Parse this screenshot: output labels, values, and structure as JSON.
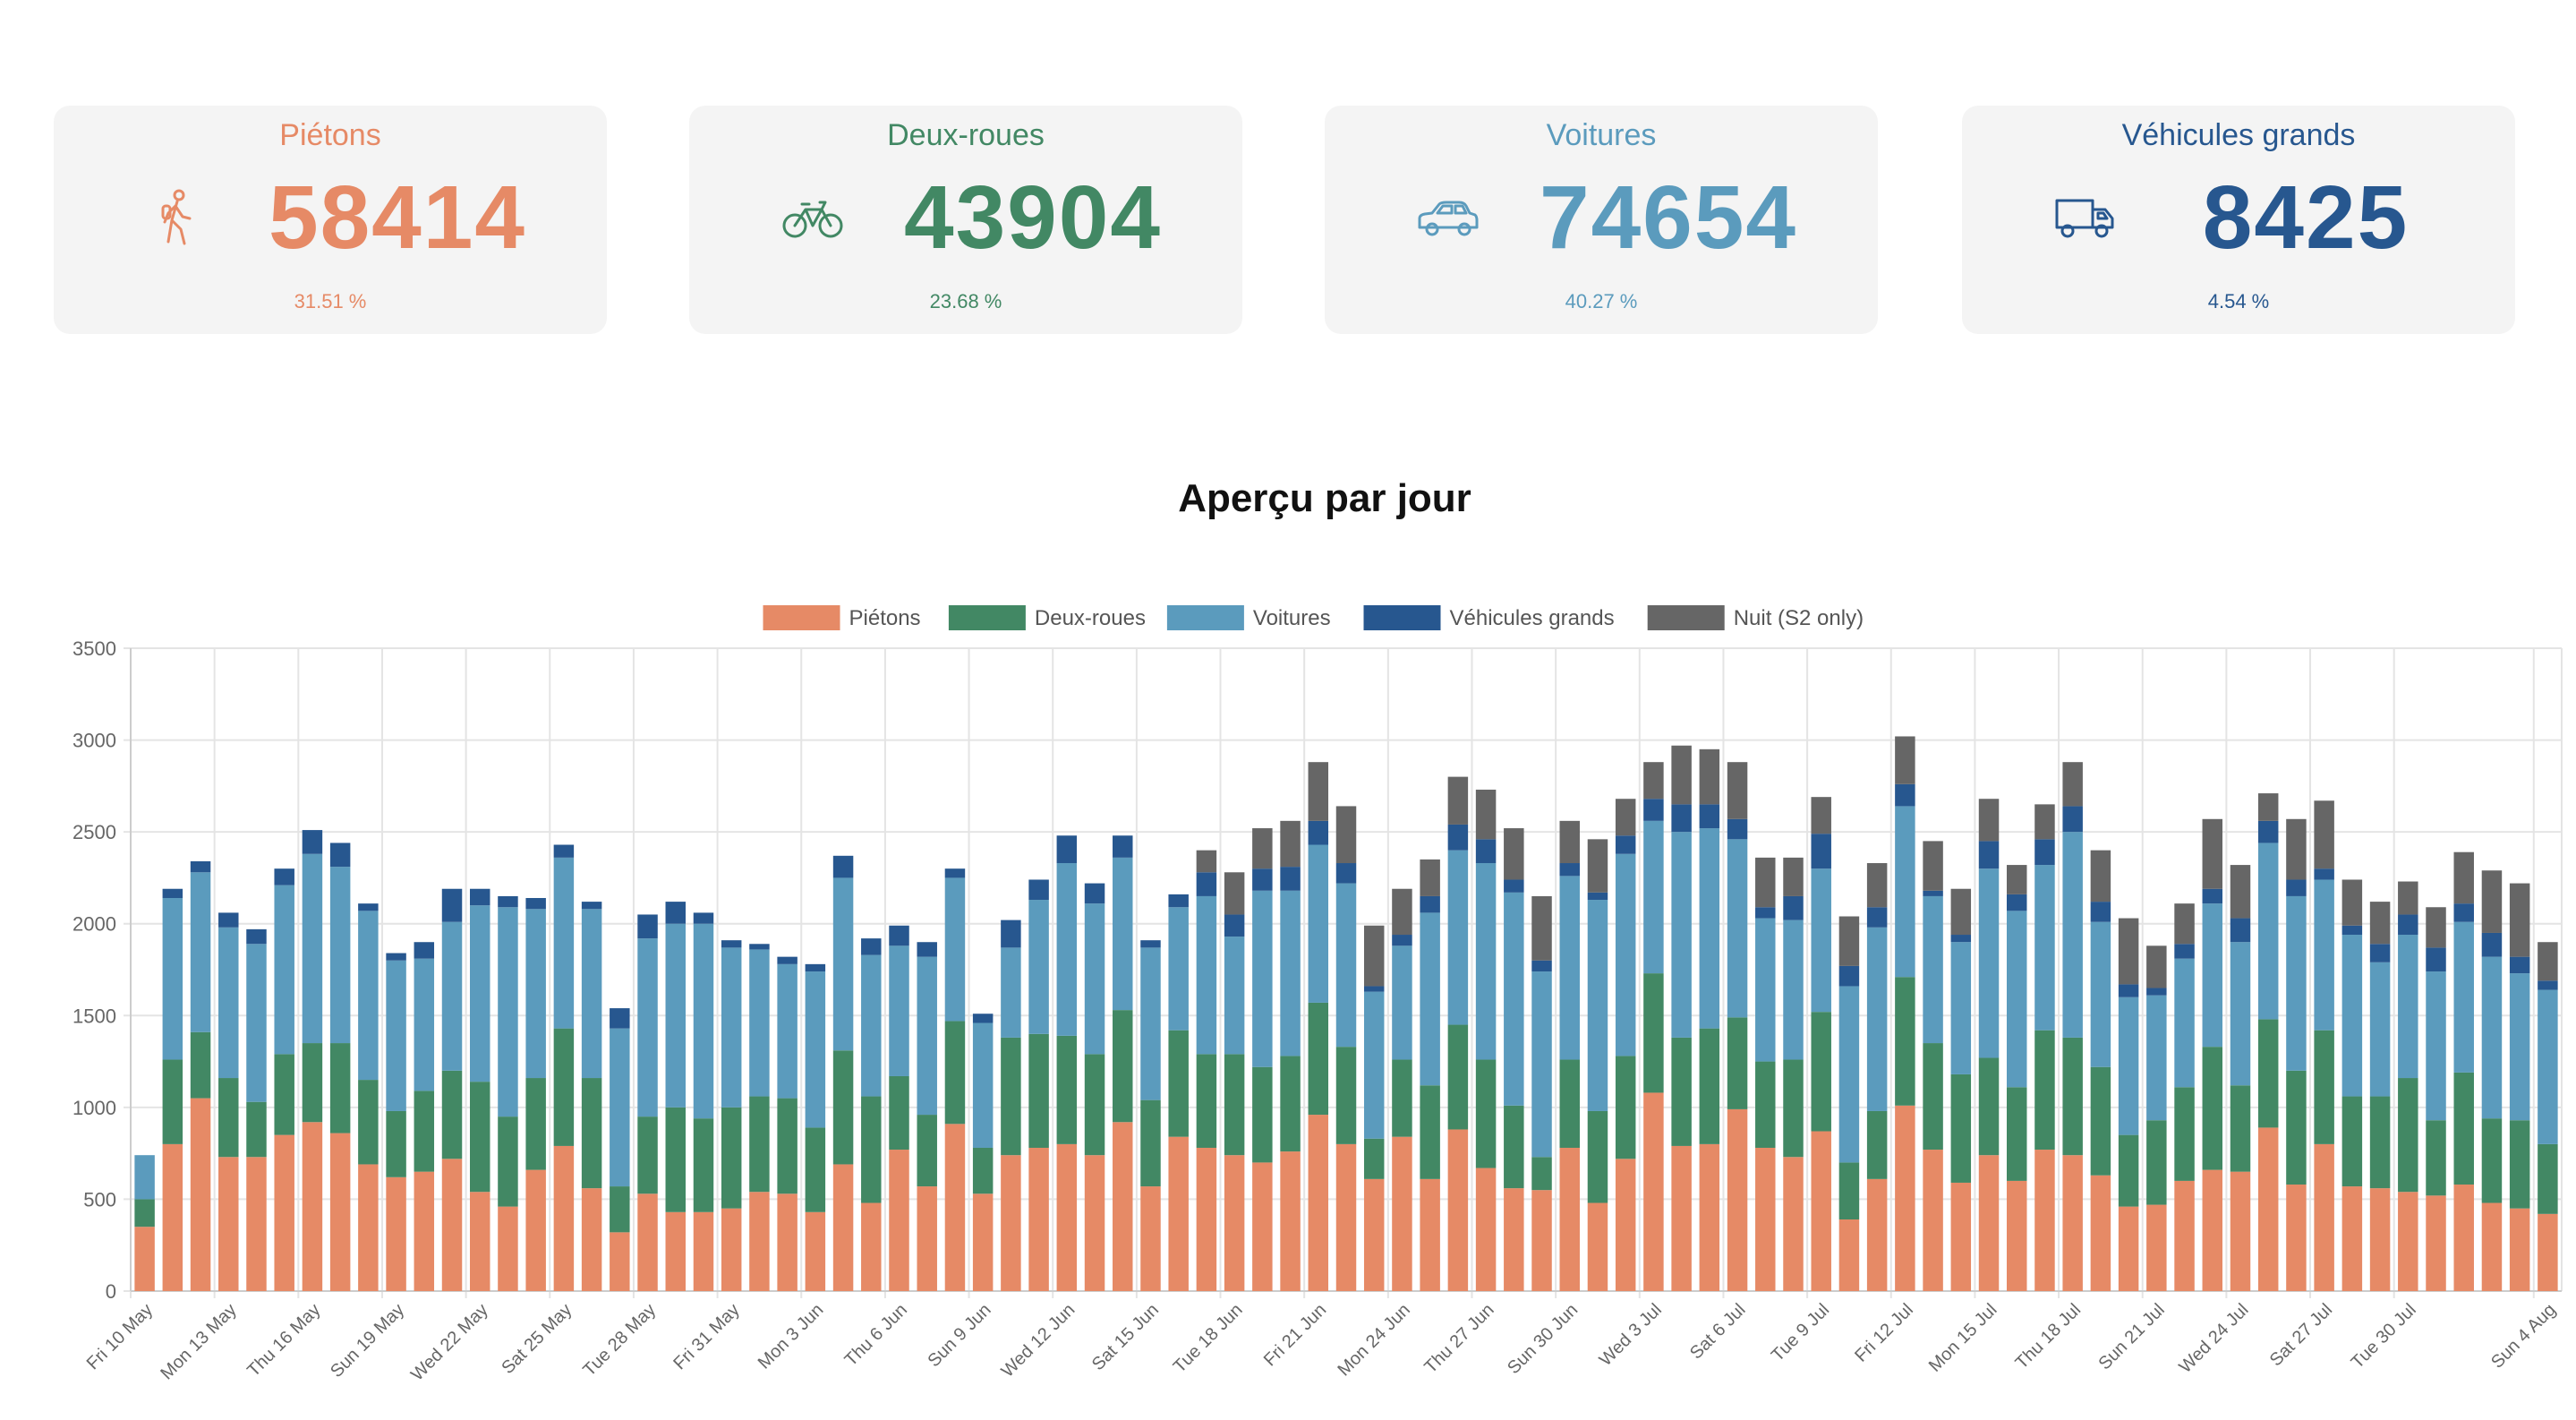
{
  "cards": [
    {
      "title": "Piétons",
      "value": "58414",
      "percent": "31.51 %",
      "color": "#e68a66",
      "icon": "pedestrian-icon"
    },
    {
      "title": "Deux-roues",
      "value": "43904",
      "percent": "23.68 %",
      "color": "#428864",
      "icon": "bicycle-icon"
    },
    {
      "title": "Voitures",
      "value": "74654",
      "percent": "40.27 %",
      "color": "#5b9bbd",
      "icon": "car-icon"
    },
    {
      "title": "Véhicules grands",
      "value": "8425",
      "percent": "4.54 %",
      "color": "#27578f",
      "icon": "truck-icon"
    }
  ],
  "chart_title": "Aperçu par jour",
  "chart_data": {
    "type": "bar",
    "stacked": true,
    "ylim": [
      0,
      3500
    ],
    "yticks": [
      0,
      500,
      1000,
      1500,
      2000,
      2500,
      3000,
      3500
    ],
    "grid": true,
    "legend_position": "top",
    "x_tick_labels": [
      "Fri 10 May",
      "Mon 13 May",
      "Thu 16 May",
      "Sun 19 May",
      "Wed 22 May",
      "Sat 25 May",
      "Tue 28 May",
      "Fri 31 May",
      "Mon 3 Jun",
      "Thu 6 Jun",
      "Sun 9 Jun",
      "Wed 12 Jun",
      "Sat 15 Jun",
      "Tue 18 Jun",
      "Fri 21 Jun",
      "Mon 24 Jun",
      "Thu 27 Jun",
      "Sun 30 Jun",
      "Wed 3 Jul",
      "Sat 6 Jul",
      "Tue 9 Jul",
      "Fri 12 Jul",
      "Mon 15 Jul",
      "Thu 18 Jul",
      "Sun 21 Jul",
      "Wed 24 Jul",
      "Sat 27 Jul",
      "Tue 30 Jul",
      "Sun 4 Aug"
    ],
    "series": [
      {
        "name": "Piétons",
        "color": "#e68a66",
        "values": [
          350,
          800,
          1050,
          730,
          730,
          850,
          920,
          860,
          690,
          620,
          650,
          720,
          540,
          460,
          660,
          790,
          560,
          320,
          530,
          430,
          430,
          450,
          540,
          530,
          430,
          690,
          480,
          770,
          570,
          910,
          530,
          740,
          780,
          800,
          740,
          920,
          570,
          840,
          780,
          740,
          700,
          760,
          960,
          800,
          610,
          840,
          610,
          880,
          670,
          560,
          550,
          780,
          480,
          720,
          1080,
          790,
          800,
          990,
          780,
          730,
          870,
          390,
          610,
          1010,
          770,
          590,
          740,
          600,
          770,
          740,
          630,
          460,
          470,
          600,
          660,
          650,
          890,
          580,
          800,
          570,
          560,
          540,
          520,
          580,
          480,
          450,
          420
        ]
      },
      {
        "name": "Deux-roues",
        "color": "#428864",
        "values": [
          150,
          460,
          360,
          430,
          300,
          440,
          430,
          490,
          460,
          360,
          440,
          480,
          600,
          490,
          500,
          640,
          600,
          250,
          420,
          570,
          510,
          550,
          520,
          520,
          460,
          620,
          580,
          400,
          390,
          560,
          250,
          640,
          620,
          590,
          550,
          610,
          470,
          580,
          510,
          550,
          520,
          520,
          610,
          530,
          220,
          420,
          510,
          570,
          590,
          450,
          180,
          480,
          500,
          560,
          650,
          590,
          630,
          500,
          470,
          530,
          650,
          310,
          370,
          700,
          580,
          590,
          530,
          510,
          650,
          640,
          590,
          390,
          460,
          510,
          670,
          470,
          590,
          620,
          620,
          490,
          500,
          620,
          410,
          610,
          460,
          480,
          380
        ]
      },
      {
        "name": "Voitures",
        "color": "#5b9bbd",
        "values": [
          240,
          880,
          870,
          820,
          860,
          920,
          1030,
          960,
          920,
          820,
          720,
          810,
          960,
          1140,
          920,
          930,
          920,
          860,
          970,
          1000,
          1060,
          870,
          800,
          730,
          850,
          940,
          770,
          710,
          860,
          780,
          680,
          490,
          730,
          940,
          820,
          830,
          830,
          670,
          860,
          640,
          960,
          900,
          860,
          890,
          800,
          620,
          940,
          950,
          1070,
          1160,
          1010,
          1000,
          1150,
          1100,
          830,
          1120,
          1090,
          970,
          780,
          760,
          780,
          960,
          1000,
          930,
          800,
          720,
          1030,
          960,
          900,
          1120,
          790,
          750,
          680,
          700,
          780,
          780,
          960,
          950,
          820,
          880,
          730,
          780,
          810,
          820,
          880,
          800,
          840
        ]
      },
      {
        "name": "Véhicules grands",
        "color": "#27578f",
        "values": [
          0,
          50,
          60,
          80,
          80,
          90,
          130,
          130,
          40,
          40,
          90,
          180,
          90,
          60,
          60,
          70,
          40,
          110,
          130,
          120,
          60,
          40,
          30,
          40,
          40,
          120,
          90,
          110,
          80,
          50,
          50,
          150,
          110,
          150,
          110,
          120,
          40,
          70,
          130,
          120,
          120,
          130,
          130,
          110,
          30,
          60,
          90,
          140,
          130,
          70,
          60,
          70,
          40,
          100,
          120,
          150,
          130,
          110,
          60,
          130,
          190,
          110,
          110,
          120,
          30,
          40,
          150,
          90,
          140,
          140,
          110,
          70,
          40,
          80,
          80,
          130,
          120,
          90,
          60,
          50,
          100,
          110,
          130,
          100,
          130,
          90,
          50
        ]
      },
      {
        "name": "Nuit (S2 only)",
        "color": "#666666",
        "values": [
          0,
          0,
          0,
          0,
          0,
          0,
          0,
          0,
          0,
          0,
          0,
          0,
          0,
          0,
          0,
          0,
          0,
          0,
          0,
          0,
          0,
          0,
          0,
          0,
          0,
          0,
          0,
          0,
          0,
          0,
          0,
          0,
          0,
          0,
          0,
          0,
          0,
          0,
          120,
          230,
          220,
          250,
          320,
          310,
          330,
          250,
          200,
          260,
          270,
          280,
          350,
          230,
          290,
          200,
          200,
          320,
          300,
          310,
          270,
          210,
          200,
          270,
          240,
          260,
          270,
          250,
          230,
          160,
          190,
          240,
          280,
          360,
          230,
          220,
          380,
          290,
          150,
          330,
          370,
          250,
          230,
          180,
          220,
          280,
          340,
          400,
          210
        ]
      }
    ]
  }
}
